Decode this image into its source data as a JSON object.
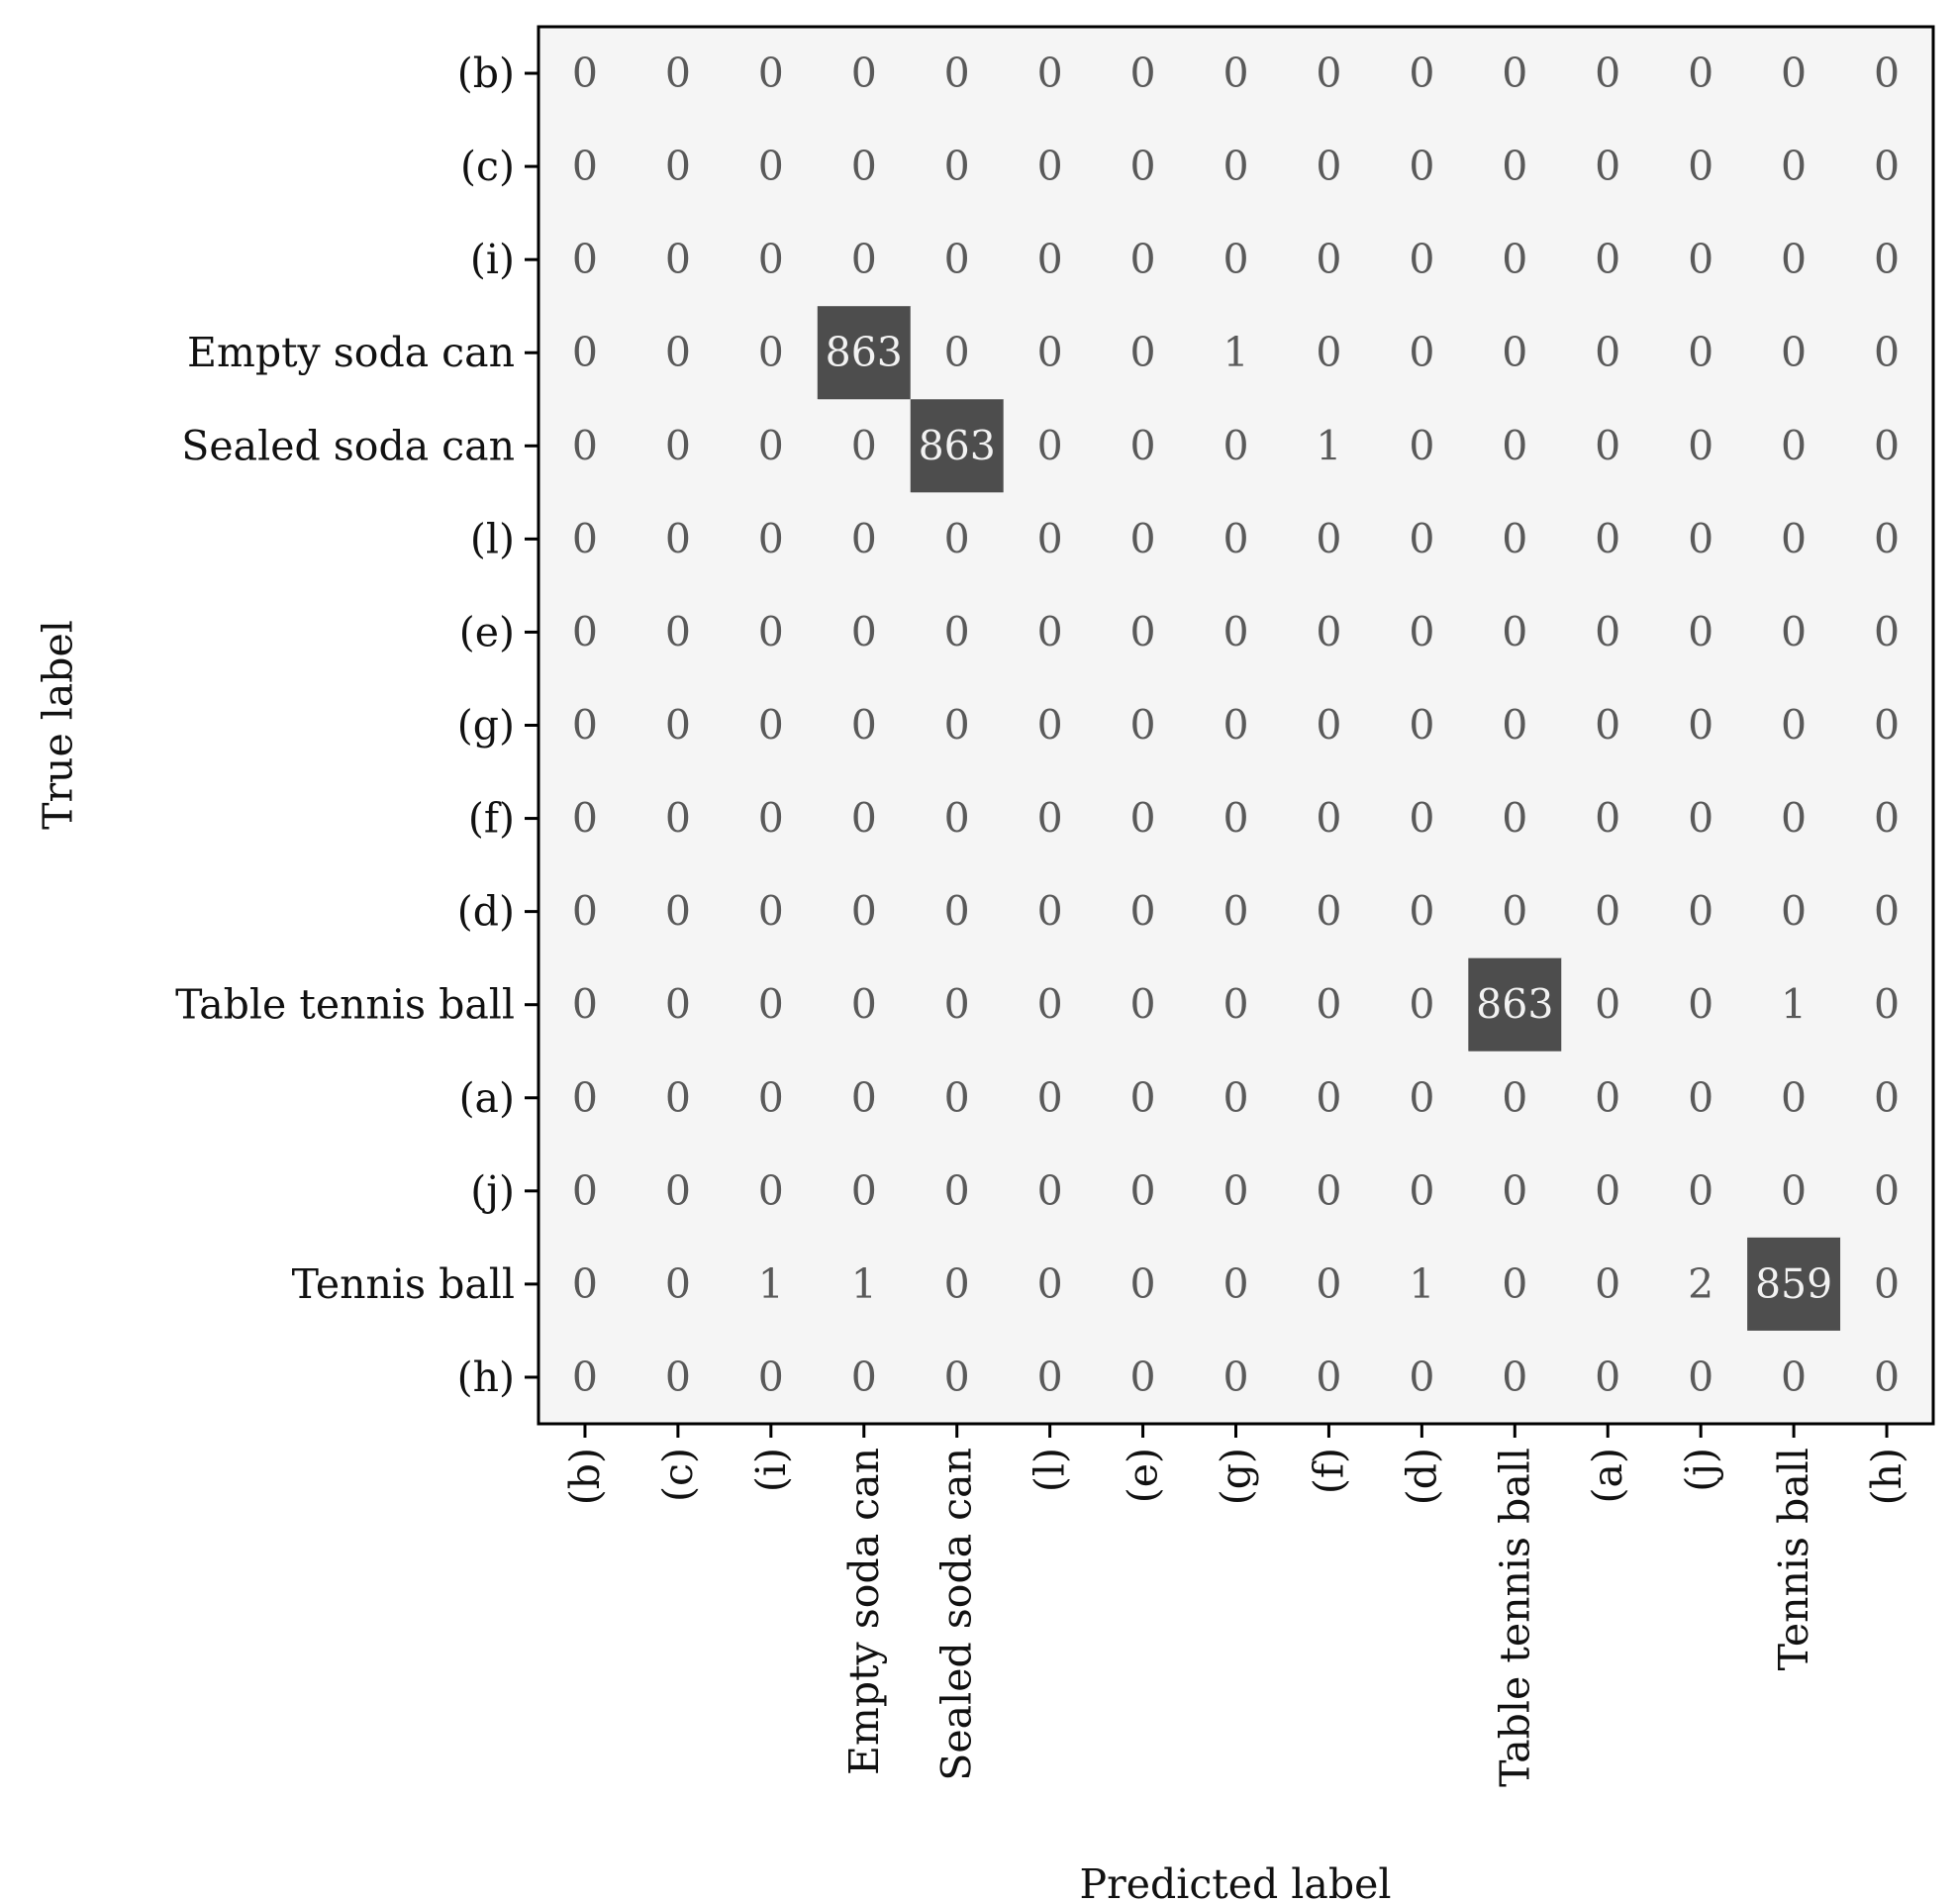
{
  "chart_data": {
    "type": "heatmap",
    "title": "",
    "xlabel": "Predicted label",
    "ylabel": "True label",
    "x_labels": [
      "(b)",
      "(c)",
      "(i)",
      "Empty soda can",
      "Sealed soda can",
      "(l)",
      "(e)",
      "(g)",
      "(f)",
      "(d)",
      "Table tennis ball",
      "(a)",
      "(j)",
      "Tennis ball",
      "(h)"
    ],
    "y_labels": [
      "(b)",
      "(c)",
      "(i)",
      "Empty soda can",
      "Sealed soda can",
      "(l)",
      "(e)",
      "(g)",
      "(f)",
      "(d)",
      "Table tennis ball",
      "(a)",
      "(j)",
      "Tennis ball",
      "(h)"
    ],
    "matrix": [
      [
        0,
        0,
        0,
        0,
        0,
        0,
        0,
        0,
        0,
        0,
        0,
        0,
        0,
        0,
        0
      ],
      [
        0,
        0,
        0,
        0,
        0,
        0,
        0,
        0,
        0,
        0,
        0,
        0,
        0,
        0,
        0
      ],
      [
        0,
        0,
        0,
        0,
        0,
        0,
        0,
        0,
        0,
        0,
        0,
        0,
        0,
        0,
        0
      ],
      [
        0,
        0,
        0,
        863,
        0,
        0,
        0,
        1,
        0,
        0,
        0,
        0,
        0,
        0,
        0
      ],
      [
        0,
        0,
        0,
        0,
        863,
        0,
        0,
        0,
        1,
        0,
        0,
        0,
        0,
        0,
        0
      ],
      [
        0,
        0,
        0,
        0,
        0,
        0,
        0,
        0,
        0,
        0,
        0,
        0,
        0,
        0,
        0
      ],
      [
        0,
        0,
        0,
        0,
        0,
        0,
        0,
        0,
        0,
        0,
        0,
        0,
        0,
        0,
        0
      ],
      [
        0,
        0,
        0,
        0,
        0,
        0,
        0,
        0,
        0,
        0,
        0,
        0,
        0,
        0,
        0
      ],
      [
        0,
        0,
        0,
        0,
        0,
        0,
        0,
        0,
        0,
        0,
        0,
        0,
        0,
        0,
        0
      ],
      [
        0,
        0,
        0,
        0,
        0,
        0,
        0,
        0,
        0,
        0,
        0,
        0,
        0,
        0,
        0
      ],
      [
        0,
        0,
        0,
        0,
        0,
        0,
        0,
        0,
        0,
        0,
        863,
        0,
        0,
        1,
        0
      ],
      [
        0,
        0,
        0,
        0,
        0,
        0,
        0,
        0,
        0,
        0,
        0,
        0,
        0,
        0,
        0
      ],
      [
        0,
        0,
        0,
        0,
        0,
        0,
        0,
        0,
        0,
        0,
        0,
        0,
        0,
        0,
        0
      ],
      [
        0,
        0,
        1,
        1,
        0,
        0,
        0,
        0,
        0,
        1,
        0,
        0,
        2,
        859,
        0
      ],
      [
        0,
        0,
        0,
        0,
        0,
        0,
        0,
        0,
        0,
        0,
        0,
        0,
        0,
        0,
        0
      ]
    ],
    "colormap": "greys",
    "value_range": [
      0,
      863
    ],
    "grid": false,
    "colorbar": false
  },
  "colors": {
    "low_cell": "#f5f5f5",
    "high_cell": "#4d4d4d",
    "low_text": "#595959",
    "high_text": "#f2f2f2",
    "axis": "#000000"
  }
}
